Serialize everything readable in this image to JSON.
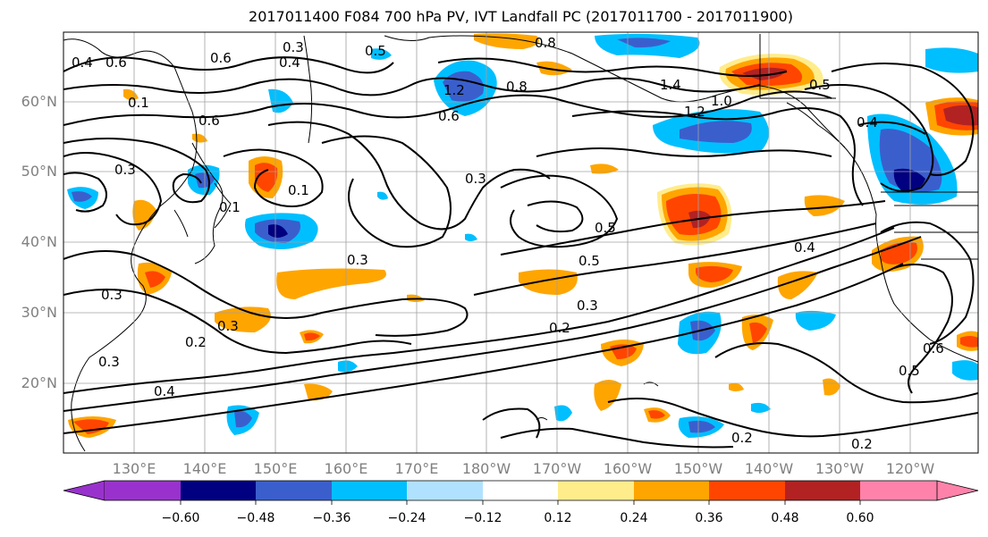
{
  "title": "2017011400 F084 700 hPa PV, IVT Landfall PC (2017011700 - 2017011900)",
  "lat_labels": [
    "60°N",
    "50°N",
    "40°N",
    "30°N",
    "20°N"
  ],
  "lon_labels": [
    "130°E",
    "140°E",
    "150°E",
    "160°E",
    "170°E",
    "180°W",
    "170°W",
    "160°W",
    "150°W",
    "140°W",
    "130°W",
    "120°W"
  ],
  "contour_labels": [
    "0.3",
    "0.4",
    "0.5",
    "0.6",
    "0.8",
    "0.1",
    "0.6",
    "0.4",
    "1.2",
    "0.8",
    "0.6",
    "1.4",
    "1.2",
    "1.0",
    "0.5",
    "0.4",
    "0.6",
    "0.3",
    "0.1",
    "0.3",
    "0.3",
    "0.5",
    "0.4",
    "0.5",
    "0.3",
    "0.2",
    "0.2",
    "0.3",
    "0.4",
    "0.2",
    "0.2",
    "0.5",
    "0.6",
    "0.3",
    "0.3",
    "0.1"
  ],
  "colorbar": {
    "ticks": [
      "−0.60",
      "−0.48",
      "−0.36",
      "−0.24",
      "−0.12",
      "0.12",
      "0.24",
      "0.36",
      "0.48",
      "0.60"
    ],
    "colors": [
      "#9932cc",
      "#000080",
      "#3a5fcd",
      "#00bfff",
      "#b0e2ff",
      "#ffffff",
      "#ffec8b",
      "#ffa500",
      "#ff4500",
      "#b22222",
      "#ff82ab"
    ]
  },
  "colors": {
    "axis_label": "#808080",
    "grid": "#a0a0a0",
    "contour": "#000000"
  }
}
